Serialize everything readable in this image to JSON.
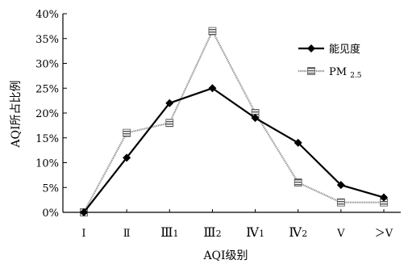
{
  "chart_data": {
    "type": "line",
    "categories": [
      "Ⅰ",
      "Ⅱ",
      "Ⅲ₁",
      "Ⅲ₂",
      "Ⅳ₁",
      "Ⅳ₂",
      "Ⅴ",
      "＞Ⅴ"
    ],
    "series": [
      {
        "name": "能见度",
        "color": "#000000",
        "marker": "diamond",
        "style": "solid",
        "values": [
          0,
          11,
          22,
          25,
          19,
          14,
          5.5,
          3
        ]
      },
      {
        "name": "PM 2.5",
        "color": "#555555",
        "marker": "square-hatched",
        "style": "hatched",
        "values": [
          0,
          16,
          18,
          36.5,
          20,
          6,
          2,
          2
        ]
      }
    ],
    "xlabel": "AQI级别",
    "ylabel": "AQI所占比例",
    "ylim": [
      0,
      40
    ],
    "yticks": [
      "0%",
      "5%",
      "10%",
      "15%",
      "20%",
      "25%",
      "30%",
      "35%",
      "40%"
    ],
    "legend_position": "top-right",
    "grid": false
  }
}
